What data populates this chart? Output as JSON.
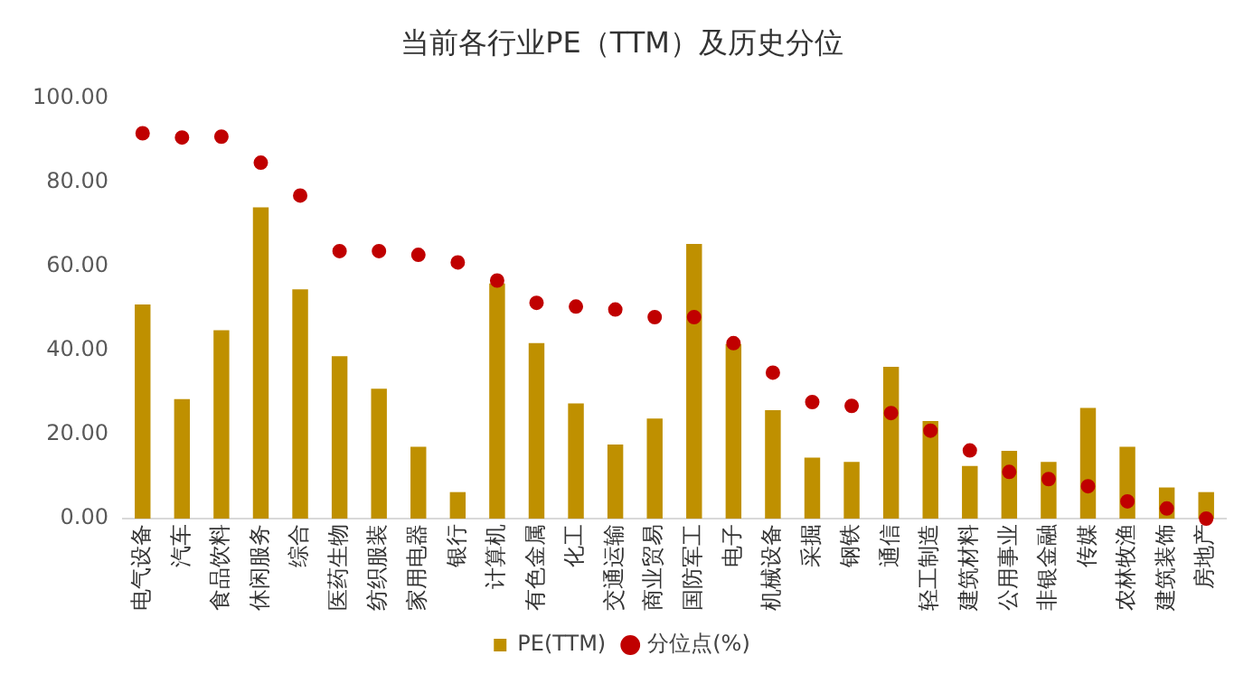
{
  "chart_data": {
    "type": "bar",
    "title": "当前各行业PE（TTM）及历史分位",
    "categories": [
      "电气设备",
      "汽车",
      "食品饮料",
      "休闲服务",
      "综合",
      "医药生物",
      "纺织服装",
      "家用电器",
      "银行",
      "计算机",
      "有色金属",
      "化工",
      "交通运输",
      "商业贸易",
      "国防军工",
      "电子",
      "机械设备",
      "采掘",
      "钢铁",
      "通信",
      "轻工制造",
      "建筑材料",
      "公用事业",
      "非银金融",
      "传媒",
      "农林牧渔",
      "建筑装饰",
      "房地产"
    ],
    "series": [
      {
        "name": "PE(TTM)",
        "type": "bar",
        "color": "#bf9000",
        "values": [
          50.9,
          28.4,
          44.8,
          74.0,
          54.5,
          38.6,
          30.9,
          17.1,
          6.3,
          55.9,
          41.7,
          27.4,
          17.6,
          23.8,
          65.3,
          41.5,
          25.8,
          14.5,
          13.5,
          36.1,
          23.2,
          12.5,
          16.1,
          13.5,
          26.3,
          17.1,
          7.4,
          6.3
        ]
      },
      {
        "name": "分位点(%)",
        "type": "scatter",
        "color": "#c00000",
        "values": [
          91.6,
          90.6,
          90.8,
          84.6,
          76.8,
          63.6,
          63.6,
          62.7,
          60.9,
          56.6,
          51.3,
          50.4,
          49.7,
          47.9,
          47.9,
          41.7,
          34.7,
          27.7,
          26.8,
          25.1,
          20.9,
          16.2,
          11.1,
          9.4,
          7.7,
          4.1,
          2.4,
          0
        ]
      }
    ],
    "ylim": [
      0,
      100
    ],
    "yticks": [
      {
        "value": 0,
        "label": "0.00"
      },
      {
        "value": 20,
        "label": "20.00"
      },
      {
        "value": 40,
        "label": "40.00"
      },
      {
        "value": 60,
        "label": "60.00"
      },
      {
        "value": 80,
        "label": "80.00"
      },
      {
        "value": 100,
        "label": "100.00"
      }
    ],
    "grid": false,
    "legend": "bottom",
    "marker": "circle"
  }
}
